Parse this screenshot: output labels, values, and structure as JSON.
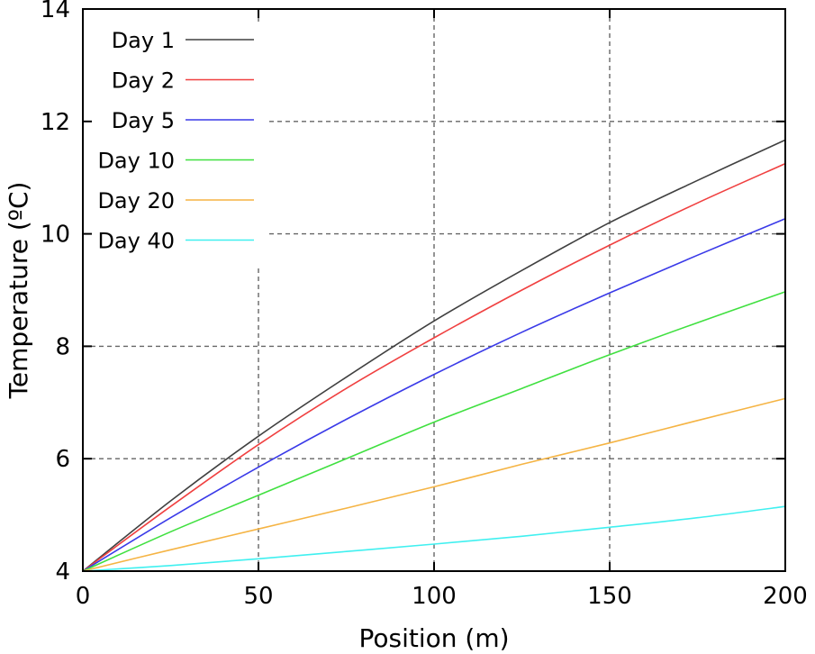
{
  "chart_data": {
    "type": "line",
    "title": "",
    "xlabel": "Position (m)",
    "ylabel": "Temperature (ºC)",
    "xlim": [
      0,
      200
    ],
    "ylim": [
      4,
      14
    ],
    "xticks": [
      0,
      50,
      100,
      150,
      200
    ],
    "yticks": [
      4,
      6,
      8,
      10,
      12,
      14
    ],
    "xtick_labels": [
      "0",
      "50",
      "100",
      "150",
      "200"
    ],
    "ytick_labels": [
      "4",
      "6",
      "8",
      "10",
      "12",
      "14"
    ],
    "grid": true,
    "legend_position": "top-left",
    "x": [
      0,
      25,
      50,
      75,
      100,
      125,
      150,
      175,
      200
    ],
    "series": [
      {
        "name": "Day 1",
        "color": "#404040",
        "values": [
          4.0,
          5.25,
          6.4,
          7.45,
          8.45,
          9.35,
          10.2,
          10.95,
          11.67
        ]
      },
      {
        "name": "Day 2",
        "color": "#f04040",
        "values": [
          4.0,
          5.15,
          6.25,
          7.25,
          8.15,
          9.0,
          9.8,
          10.55,
          11.25
        ]
      },
      {
        "name": "Day 5",
        "color": "#3a3ae8",
        "values": [
          4.0,
          4.95,
          5.85,
          6.7,
          7.5,
          8.25,
          8.95,
          9.62,
          10.27
        ]
      },
      {
        "name": "Day 10",
        "color": "#40e040",
        "values": [
          4.0,
          4.7,
          5.35,
          6.0,
          6.65,
          7.25,
          7.85,
          8.42,
          8.97
        ]
      },
      {
        "name": "Day 20",
        "color": "#f5b444",
        "values": [
          4.0,
          4.38,
          4.75,
          5.12,
          5.5,
          5.9,
          6.28,
          6.68,
          7.07
        ]
      },
      {
        "name": "Day 40",
        "color": "#40f0f0",
        "values": [
          4.0,
          4.1,
          4.22,
          4.35,
          4.48,
          4.62,
          4.78,
          4.95,
          5.15
        ]
      }
    ]
  }
}
